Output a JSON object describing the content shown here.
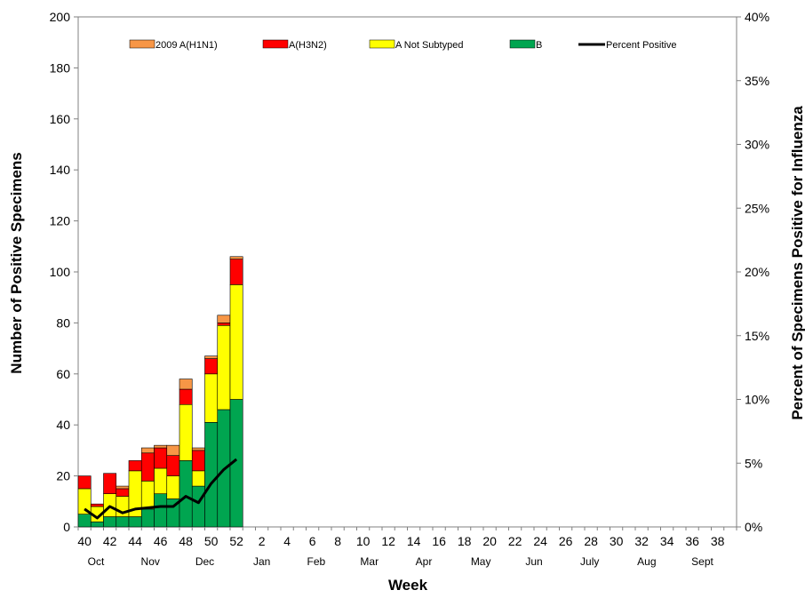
{
  "chart_data": {
    "type": "bar",
    "stacked": true,
    "xlabel": "Week",
    "ylabel": "Number of Positive Specimens",
    "y2label": "Percent of Specimens Positive for Influenza",
    "ylim": [
      0,
      200
    ],
    "y2lim": [
      0,
      40
    ],
    "yticks": [
      "0",
      "20",
      "40",
      "60",
      "80",
      "100",
      "120",
      "140",
      "160",
      "180",
      "200"
    ],
    "y2ticks": [
      "0%",
      "5%",
      "10%",
      "15%",
      "20%",
      "25%",
      "30%",
      "35%",
      "40%"
    ],
    "x_tick_labels": [
      "40",
      "42",
      "44",
      "46",
      "48",
      "50",
      "52",
      "2",
      "4",
      "6",
      "8",
      "10",
      "12",
      "14",
      "16",
      "18",
      "20",
      "22",
      "24",
      "26",
      "28",
      "30",
      "32",
      "34",
      "36",
      "38"
    ],
    "months": [
      "Oct",
      "Nov",
      "Dec",
      "Jan",
      "Feb",
      "Mar",
      "Apr",
      "May",
      "Jun",
      "July",
      "Aug",
      "Sept"
    ],
    "week_count": 52,
    "legend_position": "top",
    "weeks": [
      "40",
      "41",
      "42",
      "43",
      "44",
      "45",
      "46",
      "47",
      "48",
      "49",
      "50",
      "51",
      "52"
    ],
    "series": [
      {
        "name": "B",
        "color": "#00a550",
        "values": [
          5,
          2,
          4,
          4,
          4,
          7,
          13,
          11,
          26,
          16,
          41,
          46,
          50
        ]
      },
      {
        "name": "A Not Subtyped",
        "color": "#ffff00",
        "values": [
          10,
          6,
          9,
          8,
          18,
          11,
          10,
          9,
          22,
          6,
          19,
          33,
          45
        ]
      },
      {
        "name": "A(H3N2)",
        "color": "#ff0000",
        "values": [
          5,
          1,
          8,
          3,
          4,
          11,
          8,
          8,
          6,
          8,
          6,
          1,
          10
        ]
      },
      {
        "name": "2009 A(H1N1)",
        "color": "#f79646",
        "values": [
          0,
          0,
          0,
          1,
          0,
          2,
          1,
          4,
          4,
          1,
          1,
          3,
          1
        ]
      }
    ],
    "line_series": {
      "name": "Percent Positive",
      "color": "#000000",
      "values": [
        1.4,
        0.7,
        1.6,
        1.1,
        1.4,
        1.5,
        1.6,
        1.6,
        2.4,
        1.9,
        3.4,
        4.5,
        5.3
      ]
    },
    "legend": [
      {
        "label": "2009 A(H1N1)",
        "color": "#f79646",
        "kind": "box"
      },
      {
        "label": "A(H3N2)",
        "color": "#ff0000",
        "kind": "box"
      },
      {
        "label": "A Not Subtyped",
        "color": "#ffff00",
        "kind": "box"
      },
      {
        "label": "B",
        "color": "#00a550",
        "kind": "box"
      },
      {
        "label": "Percent Positive",
        "color": "#000000",
        "kind": "line"
      }
    ]
  }
}
